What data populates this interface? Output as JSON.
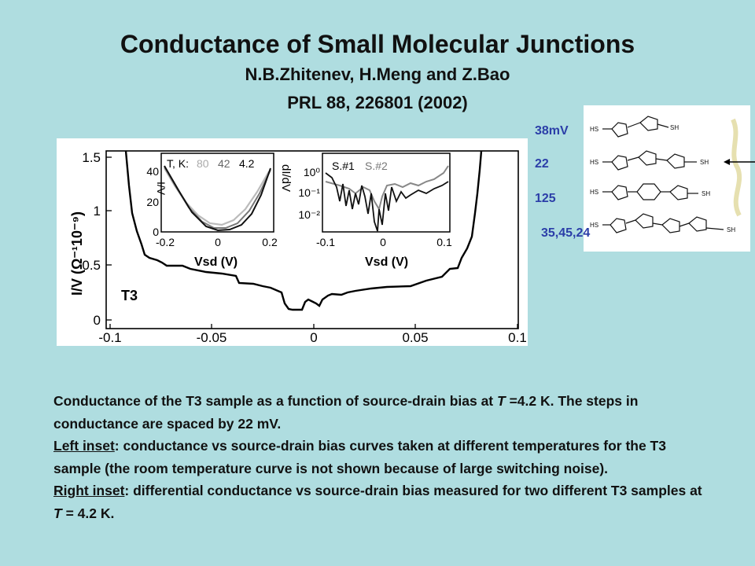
{
  "slide": {
    "title": "Conductance of Small Molecular Junctions",
    "authors": "N.B.Zhitenev, H.Meng and Z.Bao",
    "reference": "PRL 88, 226801 (2002)"
  },
  "annotations": [
    "38mV",
    "22",
    "125",
    "35,45,24"
  ],
  "figure": {
    "sample_label": "T3",
    "main_ylabel": "I/V (Ω⁻¹10⁻⁹)",
    "main_yticks": [
      "0",
      "0.5",
      "1",
      "1.5"
    ],
    "main_xticks": [
      "-0.1",
      "-0.05",
      "0",
      "0.05",
      "0.1"
    ],
    "left_inset": {
      "legend_prefix": "T, K:",
      "temps": [
        "80",
        "42",
        "4.2"
      ],
      "ylabel": "I/V",
      "yticks": [
        "0",
        "20",
        "40"
      ],
      "xticks": [
        "-0.2",
        "0",
        "0.2"
      ],
      "xlabel": "Vsd (V)"
    },
    "right_inset": {
      "samples": [
        "S.#1",
        "S.#2"
      ],
      "ylabel": "dI/dV",
      "yticks": [
        "10⁰",
        "10⁻¹",
        "10⁻²"
      ],
      "xticks": [
        "-0.1",
        "0",
        "0.1"
      ],
      "xlabel": "Vsd (V)"
    }
  },
  "molecules": {
    "end_group": "HS",
    "end_group_right": "SH",
    "ring_atom": "S"
  },
  "caption": {
    "p1": "Conductance of the T3 sample as a function of source-drain bias at ",
    "p1_T": "T",
    "p1_rest": " =4.2 K. The steps in conductance are spaced by 22 mV.",
    "left_label": "Left inset",
    "left_text": ": conductance vs source-drain bias curves taken at different temperatures for the T3 sample (the room temperature curve is not shown because of large switching noise).",
    "right_label": "Right inset",
    "right_text": ": differential conductance vs source-drain bias measured for two different T3 samples at ",
    "right_T": "T",
    "right_rest": " = 4.2 K."
  },
  "colors": {
    "background": "#afdde0",
    "annotation": "#2b3ea8"
  }
}
